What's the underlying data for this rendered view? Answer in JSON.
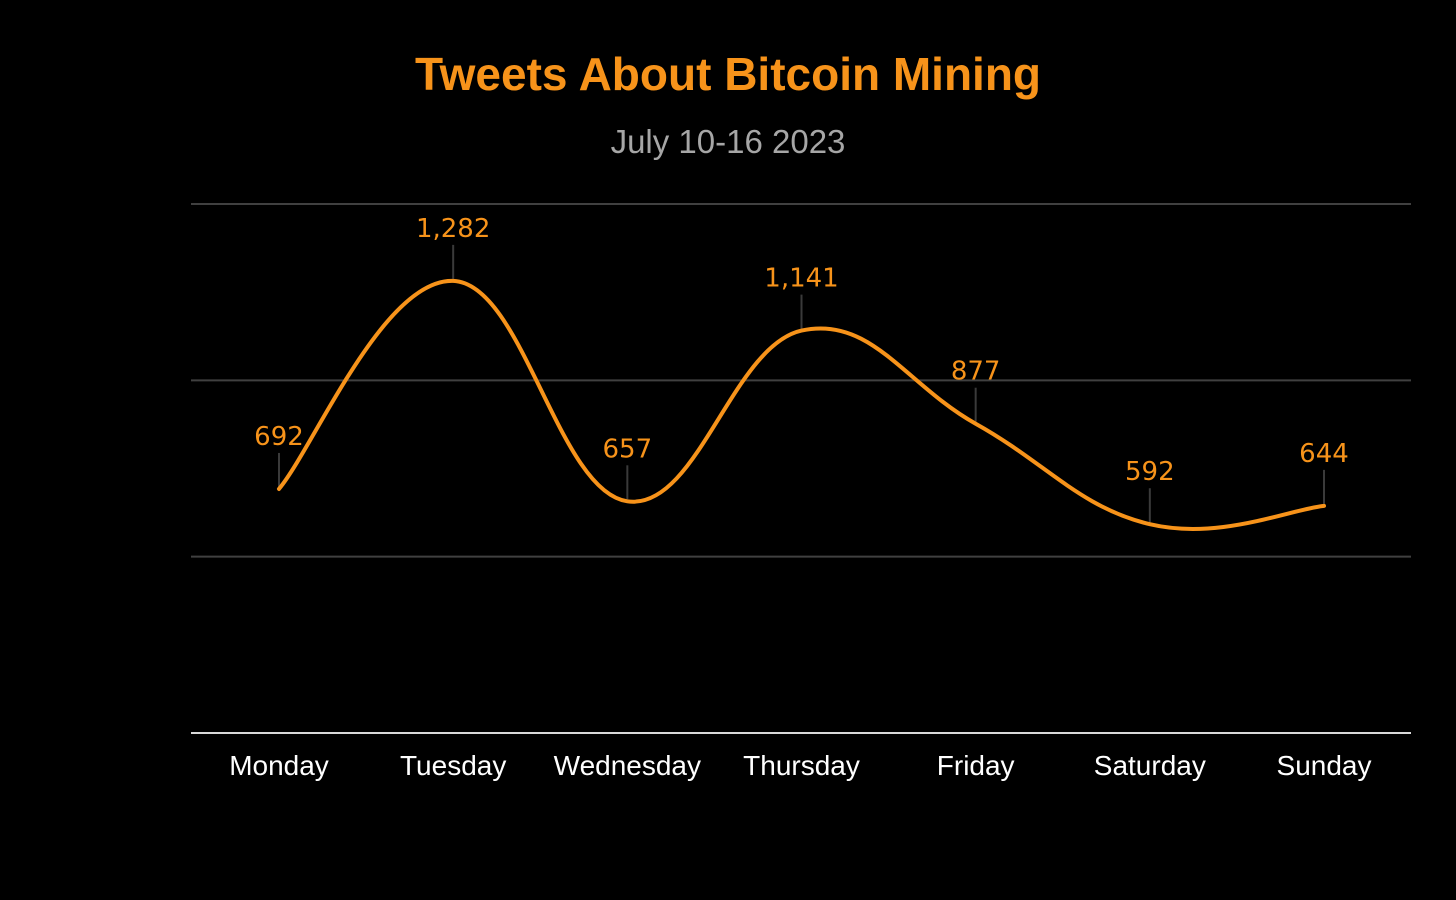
{
  "colors": {
    "background": "#000000",
    "accent": "#f7931a",
    "subtitle": "#a6a6a6",
    "gridline": "#404040",
    "axis": "#d9d9d9",
    "tick_text": "#ffffff"
  },
  "chart_data": {
    "type": "line",
    "title": "Tweets About Bitcoin Mining",
    "subtitle": "July 10-16 2023",
    "xlabel": "",
    "ylabel": "",
    "categories": [
      "Monday",
      "Tuesday",
      "Wednesday",
      "Thursday",
      "Friday",
      "Saturday",
      "Sunday"
    ],
    "series": [
      {
        "values": [
          692,
          1282,
          657,
          1141,
          877,
          592,
          644
        ],
        "labels": [
          "692",
          "1,282",
          "657",
          "1,141",
          "877",
          "592",
          "644"
        ]
      }
    ],
    "ylim": [
      0,
      1500
    ],
    "y_gridlines": [
      500,
      1000,
      1500
    ],
    "smooth": true,
    "grid": "horizontal",
    "legend": "none"
  }
}
